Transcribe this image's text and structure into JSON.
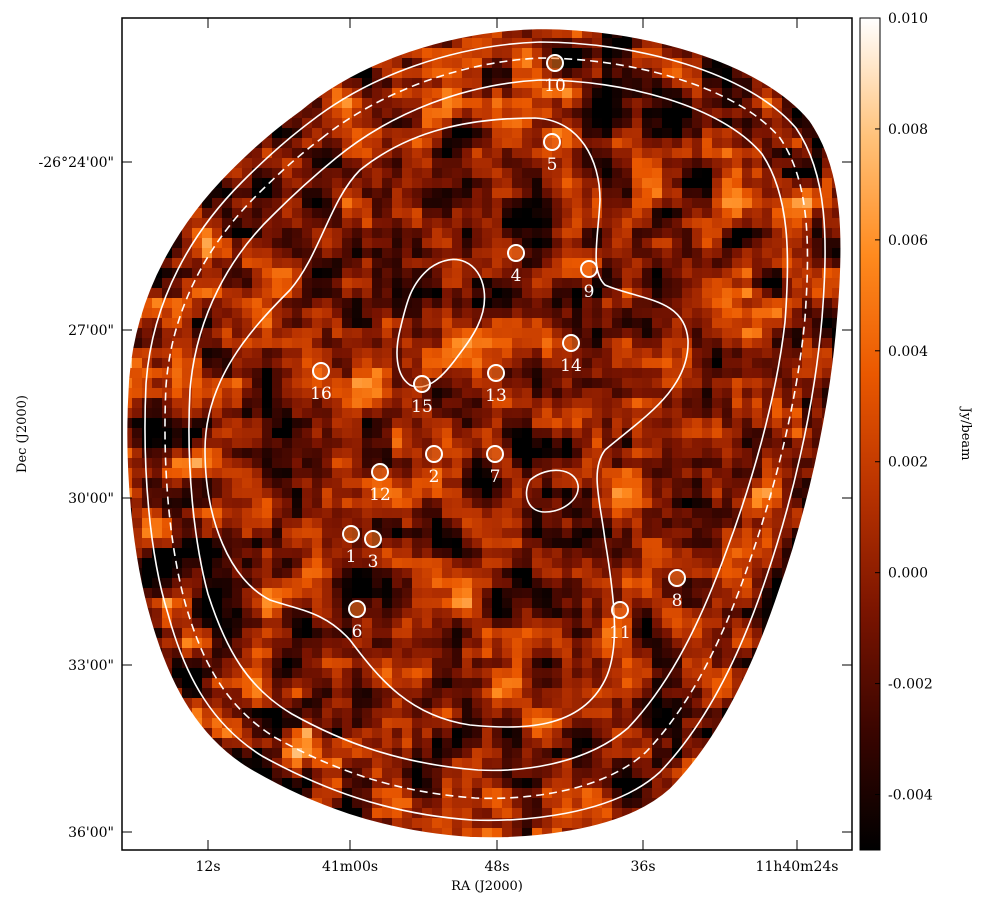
{
  "chart_data": {
    "type": "heatmap",
    "xlabel": "RA (J2000)",
    "ylabel": "Dec (J2000)",
    "x_tick_labels": [
      "12s",
      "41m00s",
      "48s",
      "36s",
      "11h40m24s"
    ],
    "y_tick_labels": [
      "-26°24'00\"",
      "27'00\"",
      "30'00\"",
      "33'00\"",
      "36'00\""
    ],
    "colorbar": {
      "label": "Jy/beam",
      "range": [
        -0.005,
        0.01
      ],
      "ticks": [
        "0.010",
        "0.008",
        "0.006",
        "0.004",
        "0.002",
        "0.000",
        "-0.002",
        "-0.004"
      ],
      "tick_values": [
        0.01,
        0.008,
        0.006,
        0.004,
        0.002,
        0.0,
        -0.002,
        -0.004
      ],
      "colors": [
        "#000000",
        "#3a0500",
        "#7a1400",
        "#b83200",
        "#ea5800",
        "#ff8a1e",
        "#ffc27a",
        "#ffffff"
      ]
    },
    "sources": [
      {
        "id": "1"
      },
      {
        "id": "2"
      },
      {
        "id": "3"
      },
      {
        "id": "4"
      },
      {
        "id": "5"
      },
      {
        "id": "6"
      },
      {
        "id": "7"
      },
      {
        "id": "8"
      },
      {
        "id": "9"
      },
      {
        "id": "10"
      },
      {
        "id": "11"
      },
      {
        "id": "12"
      },
      {
        "id": "13"
      },
      {
        "id": "14"
      },
      {
        "id": "15"
      },
      {
        "id": "16"
      }
    ],
    "contours": "white sensitivity contours, one dashed",
    "grid": false
  }
}
